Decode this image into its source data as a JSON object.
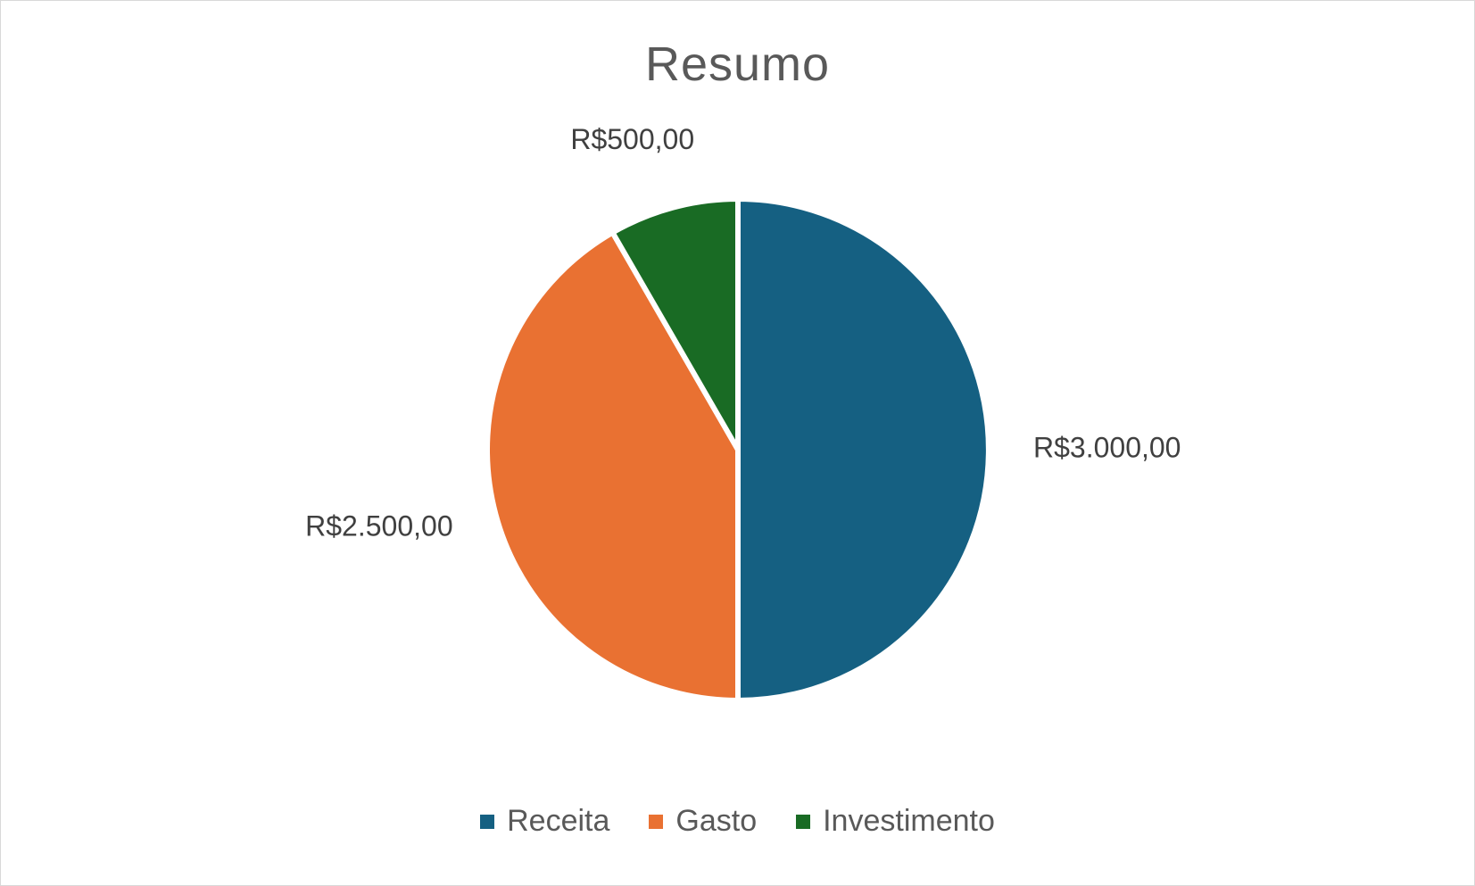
{
  "chart_data": {
    "type": "pie",
    "title": "Resumo",
    "categories": [
      "Receita",
      "Gasto",
      "Investimento"
    ],
    "values": [
      3000,
      2500,
      500
    ],
    "data_labels": [
      "R$3.000,00",
      "R$2.500,00",
      "R$500,00"
    ],
    "colors": [
      "#156082",
      "#E97132",
      "#196B24"
    ],
    "start_angle_deg": 0,
    "direction": "clockwise",
    "legend_position": "bottom"
  }
}
